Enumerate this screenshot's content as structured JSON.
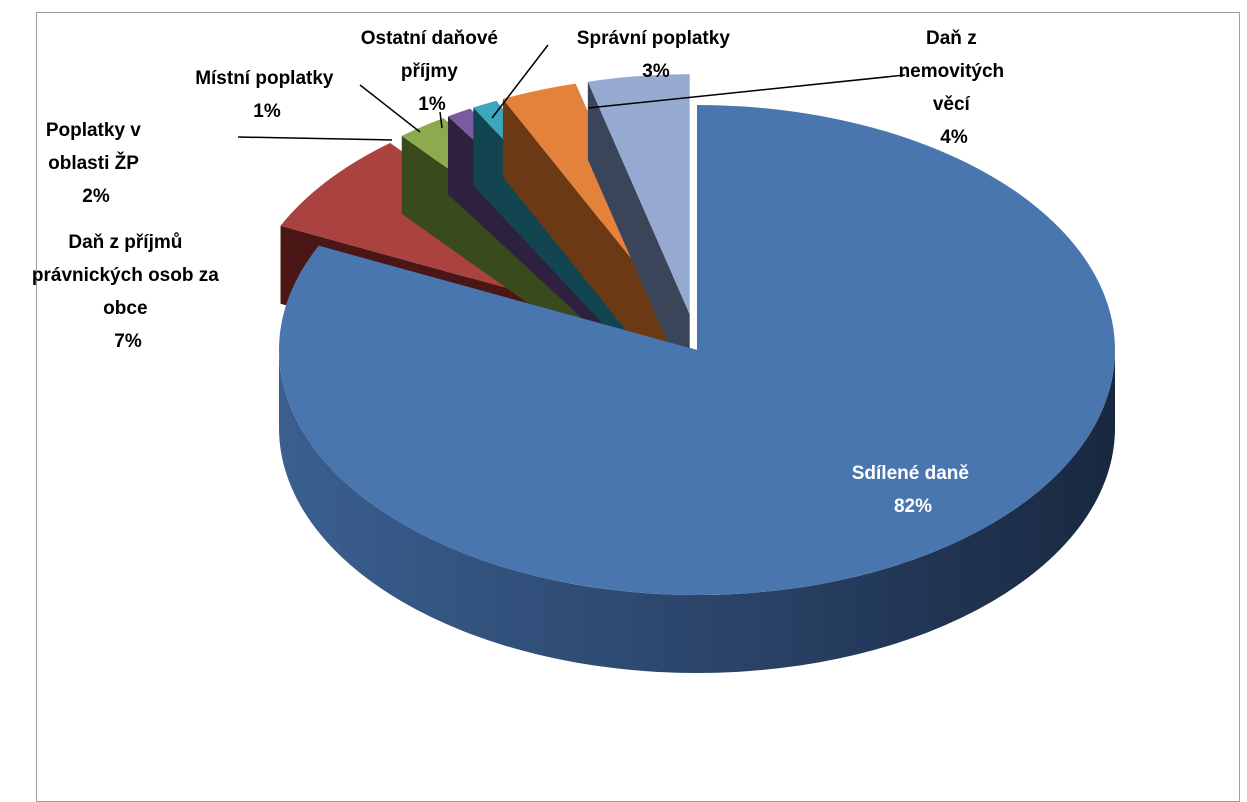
{
  "chart_data": {
    "type": "pie",
    "style": "3d-exploded",
    "title": "",
    "legend": "none",
    "slices": [
      {
        "name": "Sdílené daně",
        "value": 82,
        "percent_label": "82%",
        "color": "#4a76b0",
        "dark": "#1c2c44"
      },
      {
        "name": "Daň z příjmů právnických osob za obce",
        "value": 7,
        "percent_label": "7%",
        "color": "#aa4240",
        "dark": "#4a1716"
      },
      {
        "name": "Poplatky v oblasti ŽP",
        "value": 2,
        "percent_label": "2%",
        "color": "#8daa4e",
        "dark": "#394a1c"
      },
      {
        "name": "Místní poplatky",
        "value": 1,
        "percent_label": "1%",
        "color": "#7a5aa0",
        "dark": "#2e2140"
      },
      {
        "name": "Ostatní daňové příjmy",
        "value": 1,
        "percent_label": "1%",
        "color": "#3aa7bf",
        "dark": "#134550"
      },
      {
        "name": "Správní poplatky",
        "value": 3,
        "percent_label": "3%",
        "color": "#e4823c",
        "dark": "#6b3a14"
      },
      {
        "name": "Daň z nemovitých věcí",
        "value": 4,
        "percent_label": "4%",
        "color": "#95a9d1",
        "dark": "#3a455a"
      }
    ]
  }
}
